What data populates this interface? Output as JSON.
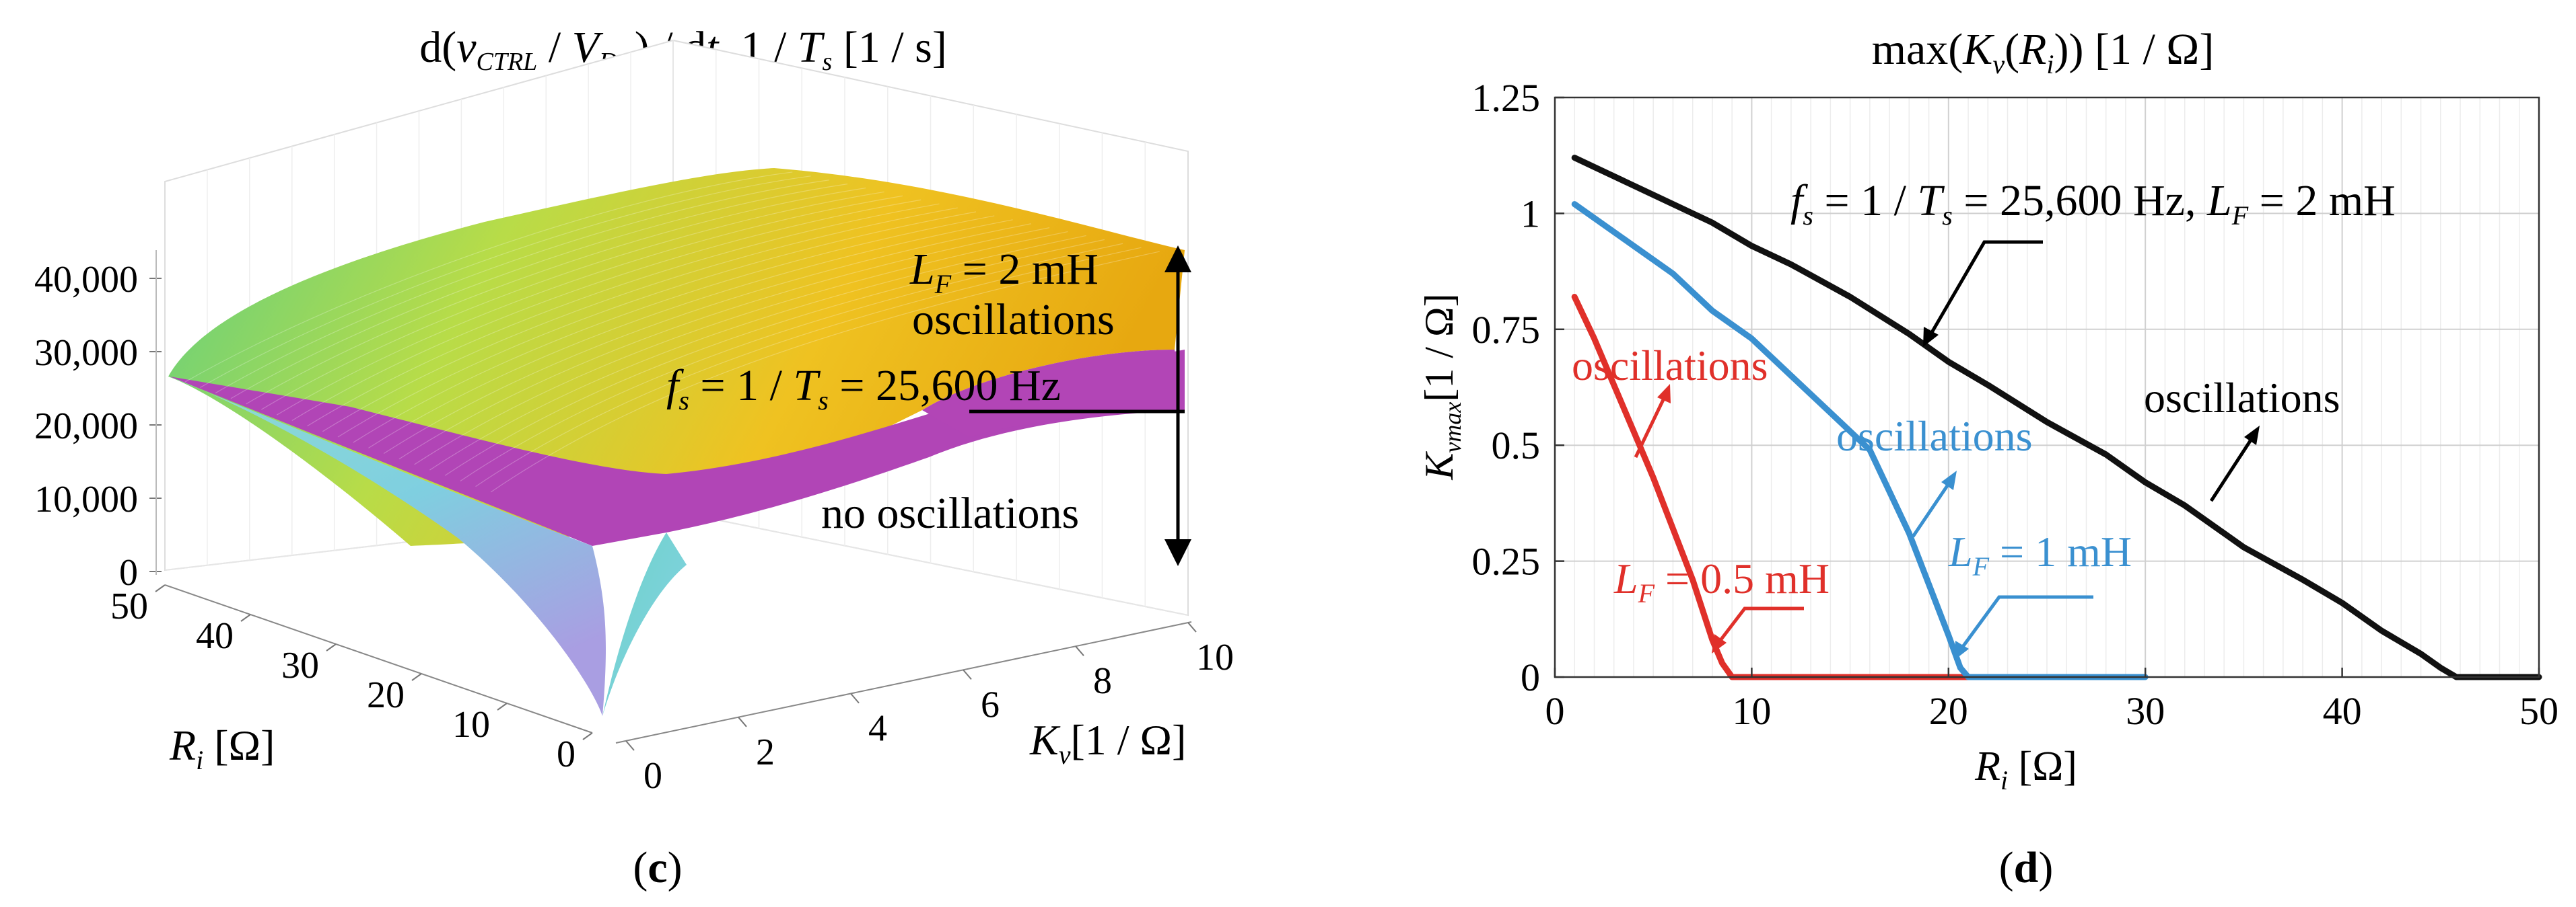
{
  "chart_data": [
    {
      "panel": "c",
      "type": "surface3d",
      "title": {
        "pre": "d(",
        "v": "v",
        "vsub": "CTRL",
        "mid": " / ",
        "V": "V",
        "Vsub": "DC",
        "post1": ") / d",
        "t": "t",
        "post2": ", 1 / ",
        "T": "T",
        "Tsub": "s",
        "units": " [1 / s]"
      },
      "zaxis": {
        "ticks": [
          "0",
          "10,000",
          "20,000",
          "30,000",
          "40,000"
        ],
        "values": [
          0,
          10000,
          20000,
          30000,
          40000
        ]
      },
      "ri_axis": {
        "label_sym": "R",
        "label_sub": "i",
        "label_unit": " [Ω]",
        "ticks": [
          "0",
          "10",
          "20",
          "30",
          "40",
          "50"
        ],
        "values": [
          0,
          10,
          20,
          30,
          40,
          50
        ]
      },
      "kv_axis": {
        "label_sym": "K",
        "label_sub": "v",
        "label_unit": "[1 / Ω]",
        "ticks": [
          "0",
          "2",
          "4",
          "6",
          "8",
          "10"
        ],
        "values": [
          0,
          2,
          4,
          6,
          8,
          10
        ]
      },
      "plane_value": 25600,
      "surfaces": [
        {
          "name": "1 / T_s plane",
          "color": "#b042b8"
        },
        {
          "name": "d(v_CTRL/V_DC)/dt surface",
          "colors": [
            "#6ad07a",
            "#c8e042",
            "#f0c020",
            "#e8a80c"
          ]
        },
        {
          "name": "lower sheet",
          "colors": [
            "#7ad8d8",
            "#a8a0e0"
          ]
        }
      ],
      "annotations": {
        "lf": {
          "sym": "L",
          "sub": "F",
          "rest": " = 2 mH"
        },
        "osc": "oscillations",
        "fs": {
          "sym": "f",
          "sub": "s",
          "mid": " = 1 / ",
          "T": "T",
          "Tsub": "s",
          "rest": " = 25,600 Hz"
        },
        "noosc": "no oscillations"
      },
      "caption": "c"
    },
    {
      "panel": "d",
      "type": "line",
      "title": {
        "pre": "max(",
        "K": "K",
        "Ksub": "v",
        "mid": "(",
        "R": "R",
        "Rsub": "i",
        "post": ")) [1 / Ω]"
      },
      "xlabel": {
        "sym": "R",
        "sub": "i",
        "unit": " [Ω]"
      },
      "ylabel": {
        "sym": "K",
        "sub": "vmax",
        "unit": "[1 / Ω]"
      },
      "xlim": [
        0,
        50
      ],
      "ylim": [
        0,
        1.25
      ],
      "xticks": [
        0,
        10,
        20,
        30,
        40,
        50
      ],
      "xtick_labels": [
        "0",
        "10",
        "20",
        "30",
        "40",
        "50"
      ],
      "yticks": [
        0,
        0.25,
        0.5,
        0.75,
        1,
        1.25
      ],
      "ytick_labels": [
        "0",
        "0.25",
        "0.5",
        "0.75",
        "1",
        "1.25"
      ],
      "grid": true,
      "series": [
        {
          "name": "L_F = 0.5 mH",
          "color": "#e0302a",
          "x": [
            1,
            2,
            3,
            4,
            5,
            6,
            7,
            8,
            8.5,
            9,
            10,
            12,
            14,
            16,
            18,
            20,
            21
          ],
          "y": [
            0.82,
            0.73,
            0.63,
            0.53,
            0.43,
            0.32,
            0.21,
            0.08,
            0.03,
            0,
            0,
            0,
            0,
            0,
            0,
            0,
            0
          ]
        },
        {
          "name": "L_F = 1 mH",
          "color": "#3a90d0",
          "x": [
            1,
            2,
            4,
            6,
            8,
            10,
            12,
            14,
            16,
            17,
            18,
            19,
            20,
            20.6,
            21,
            22,
            24,
            26,
            28,
            30
          ],
          "y": [
            1.02,
            0.99,
            0.93,
            0.87,
            0.79,
            0.73,
            0.65,
            0.57,
            0.49,
            0.4,
            0.31,
            0.2,
            0.09,
            0.02,
            0,
            0,
            0,
            0,
            0,
            0
          ]
        },
        {
          "name": "L_F = 2 mH",
          "color": "#111111",
          "x": [
            1,
            3,
            5,
            8,
            10,
            12,
            15,
            18,
            20,
            22,
            25,
            28,
            30,
            32,
            35,
            38,
            40,
            42,
            44,
            45,
            45.8,
            46,
            48,
            50
          ],
          "y": [
            1.12,
            1.08,
            1.04,
            0.98,
            0.93,
            0.89,
            0.82,
            0.74,
            0.68,
            0.63,
            0.55,
            0.48,
            0.42,
            0.37,
            0.28,
            0.21,
            0.16,
            0.1,
            0.05,
            0.02,
            0,
            0,
            0,
            0
          ]
        }
      ],
      "annotations": {
        "fs": {
          "sym": "f",
          "sub": "s",
          "mid": " = 1 / ",
          "T": "T",
          "Tsub": "s",
          "rest": " = 25,600 Hz, ",
          "L": "L",
          "Lsub": "F",
          "rest2": " = 2 mH"
        },
        "osc_black": "oscillations",
        "osc_blue": "oscillations",
        "osc_red": "oscillations",
        "lf_blue": {
          "sym": "L",
          "sub": "F",
          "rest": " = 1 mH"
        },
        "lf_red": {
          "sym": "L",
          "sub": "F",
          "rest": " = 0.5 mH"
        }
      },
      "caption": "d"
    }
  ]
}
